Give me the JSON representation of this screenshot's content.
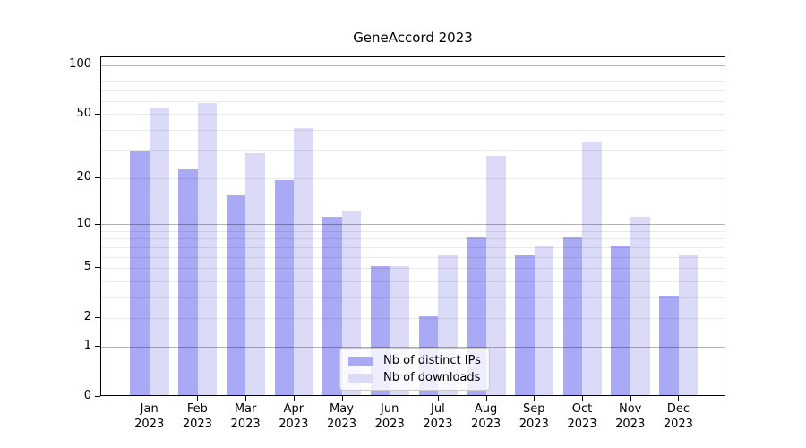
{
  "chart_data": {
    "type": "bar",
    "title": "GeneAccord 2023",
    "xlabel": "",
    "ylabel": "",
    "categories": [
      "Jan",
      "Feb",
      "Mar",
      "Apr",
      "May",
      "Jun",
      "Jul",
      "Aug",
      "Sep",
      "Oct",
      "Nov",
      "Dec"
    ],
    "year_label": "2023",
    "series": [
      {
        "name": "Nb of distinct IPs",
        "color": "#a9a9f5",
        "values": [
          29,
          22,
          15,
          19,
          11,
          5,
          2,
          8,
          6,
          8,
          7,
          3
        ]
      },
      {
        "name": "Nb of downloads",
        "color": "#dbdbf8",
        "values": [
          53,
          57,
          28,
          40,
          12,
          5,
          6,
          27,
          7,
          33,
          11,
          6
        ]
      }
    ],
    "yscale": "log1p",
    "ylim": [
      0,
      111
    ],
    "yticks": [
      0,
      1,
      2,
      5,
      10,
      20,
      50,
      100
    ],
    "major_gridlines": [
      1,
      10,
      100
    ],
    "minor_gridlines": [
      2,
      3,
      4,
      5,
      6,
      7,
      8,
      9,
      20,
      30,
      40,
      50,
      60,
      70,
      80,
      90
    ],
    "grid": true,
    "legend_position": "lower center"
  }
}
